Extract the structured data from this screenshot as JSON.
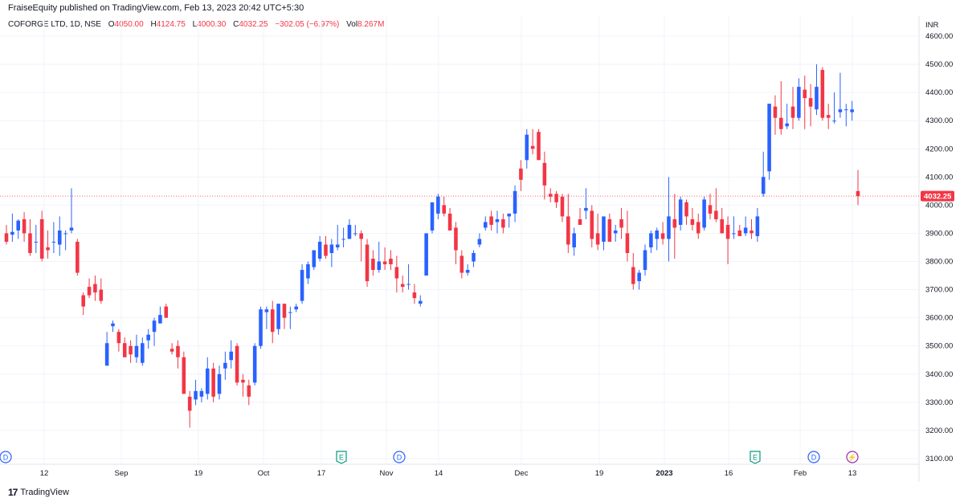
{
  "header": {
    "published_text": "FraiseEquity published on TradingView.com, Feb 13, 2023 20:42 UTC+5:30"
  },
  "legend": {
    "symbol": "COFORGE LTD, 1D, NSE",
    "open_label": "O",
    "open": "4050.00",
    "high_label": "H",
    "high": "4124.75",
    "low_label": "L",
    "low": "4000.30",
    "close_label": "C",
    "close": "4032.25",
    "change": "−302.05 (−6.97%)",
    "vol_label": "Vol",
    "vol": "8.267M"
  },
  "axis": {
    "currency": "INR",
    "last_price_label": "4032.25"
  },
  "footer": {
    "brand": "TradingView"
  },
  "colors": {
    "up": "#2962ff",
    "down": "#f23645",
    "grid": "#f0f3fa",
    "marker_green": "#089981",
    "marker_blue": "#2962ff",
    "marker_purple": "#9c27b0"
  },
  "chart_data": {
    "type": "candlestick",
    "ylim": [
      3100,
      4600
    ],
    "y_ticks": [
      3100,
      3200,
      3300,
      3400,
      3500,
      3600,
      3700,
      3800,
      3900,
      4000,
      4100,
      4200,
      4300,
      4400,
      4500,
      4600
    ],
    "x_ticks": [
      "12",
      "Sep",
      "19",
      "Oct",
      "17",
      "Nov",
      "14",
      "Dec",
      "19",
      "2023",
      "16",
      "Feb",
      "13"
    ],
    "last_price": 4032.25,
    "event_markers": [
      {
        "label": "D",
        "kind": "dividend"
      },
      {
        "label": "E",
        "kind": "earnings"
      },
      {
        "label": "D",
        "kind": "dividend"
      },
      {
        "label": "E",
        "kind": "earnings"
      },
      {
        "label": "D",
        "kind": "dividend"
      },
      {
        "label": "⚡",
        "kind": "split"
      }
    ],
    "candles": [
      {
        "o": 3900,
        "h": 3930,
        "l": 3860,
        "c": 3870
      },
      {
        "o": 3895,
        "h": 3970,
        "l": 3870,
        "c": 3905
      },
      {
        "o": 3910,
        "h": 3950,
        "l": 3880,
        "c": 3945
      },
      {
        "o": 3950,
        "h": 3975,
        "l": 3870,
        "c": 3900
      },
      {
        "o": 3900,
        "h": 3950,
        "l": 3820,
        "c": 3830
      },
      {
        "o": 3870,
        "h": 3930,
        "l": 3830,
        "c": 3870
      },
      {
        "o": 3950,
        "h": 3980,
        "l": 3800,
        "c": 3810
      },
      {
        "o": 3850,
        "h": 3910,
        "l": 3810,
        "c": 3840
      },
      {
        "o": 3870,
        "h": 3940,
        "l": 3830,
        "c": 3870
      },
      {
        "o": 3860,
        "h": 3960,
        "l": 3820,
        "c": 3910
      },
      {
        "o": 3900,
        "h": 3910,
        "l": 3840,
        "c": 3900
      },
      {
        "o": 3910,
        "h": 4060,
        "l": 3900,
        "c": 3920
      },
      {
        "o": 3870,
        "h": 3880,
        "l": 3750,
        "c": 3760
      },
      {
        "o": 3680,
        "h": 3690,
        "l": 3610,
        "c": 3640
      },
      {
        "o": 3710,
        "h": 3740,
        "l": 3670,
        "c": 3680
      },
      {
        "o": 3720,
        "h": 3750,
        "l": 3660,
        "c": 3690
      },
      {
        "o": 3700,
        "h": 3740,
        "l": 3650,
        "c": 3660
      },
      {
        "o": 3430,
        "h": 3550,
        "l": 3430,
        "c": 3510
      },
      {
        "o": 3570,
        "h": 3590,
        "l": 3550,
        "c": 3580
      },
      {
        "o": 3550,
        "h": 3560,
        "l": 3480,
        "c": 3510
      },
      {
        "o": 3510,
        "h": 3530,
        "l": 3460,
        "c": 3460
      },
      {
        "o": 3500,
        "h": 3520,
        "l": 3440,
        "c": 3470
      },
      {
        "o": 3460,
        "h": 3540,
        "l": 3440,
        "c": 3500
      },
      {
        "o": 3440,
        "h": 3530,
        "l": 3430,
        "c": 3510
      },
      {
        "o": 3520,
        "h": 3560,
        "l": 3490,
        "c": 3540
      },
      {
        "o": 3550,
        "h": 3600,
        "l": 3500,
        "c": 3590
      },
      {
        "o": 3580,
        "h": 3640,
        "l": 3580,
        "c": 3610
      },
      {
        "o": 3640,
        "h": 3650,
        "l": 3600,
        "c": 3600
      },
      {
        "o": 3490,
        "h": 3510,
        "l": 3470,
        "c": 3480
      },
      {
        "o": 3500,
        "h": 3520,
        "l": 3420,
        "c": 3460
      },
      {
        "o": 3460,
        "h": 3480,
        "l": 3330,
        "c": 3330
      },
      {
        "o": 3320,
        "h": 3340,
        "l": 3210,
        "c": 3270
      },
      {
        "o": 3310,
        "h": 3380,
        "l": 3290,
        "c": 3340
      },
      {
        "o": 3320,
        "h": 3350,
        "l": 3300,
        "c": 3340
      },
      {
        "o": 3330,
        "h": 3460,
        "l": 3310,
        "c": 3420
      },
      {
        "o": 3420,
        "h": 3440,
        "l": 3300,
        "c": 3320
      },
      {
        "o": 3330,
        "h": 3430,
        "l": 3310,
        "c": 3400
      },
      {
        "o": 3420,
        "h": 3480,
        "l": 3380,
        "c": 3440
      },
      {
        "o": 3450,
        "h": 3520,
        "l": 3420,
        "c": 3480
      },
      {
        "o": 3500,
        "h": 3510,
        "l": 3360,
        "c": 3370
      },
      {
        "o": 3380,
        "h": 3400,
        "l": 3320,
        "c": 3370
      },
      {
        "o": 3360,
        "h": 3380,
        "l": 3290,
        "c": 3320
      },
      {
        "o": 3370,
        "h": 3510,
        "l": 3360,
        "c": 3500
      },
      {
        "o": 3500,
        "h": 3640,
        "l": 3490,
        "c": 3630
      },
      {
        "o": 3620,
        "h": 3640,
        "l": 3560,
        "c": 3630
      },
      {
        "o": 3630,
        "h": 3660,
        "l": 3510,
        "c": 3550
      },
      {
        "o": 3560,
        "h": 3650,
        "l": 3540,
        "c": 3650
      },
      {
        "o": 3650,
        "h": 3650,
        "l": 3560,
        "c": 3600
      },
      {
        "o": 3620,
        "h": 3640,
        "l": 3560,
        "c": 3620
      },
      {
        "o": 3630,
        "h": 3650,
        "l": 3620,
        "c": 3640
      },
      {
        "o": 3660,
        "h": 3790,
        "l": 3650,
        "c": 3770
      },
      {
        "o": 3740,
        "h": 3800,
        "l": 3720,
        "c": 3790
      },
      {
        "o": 3780,
        "h": 3840,
        "l": 3770,
        "c": 3840
      },
      {
        "o": 3810,
        "h": 3890,
        "l": 3800,
        "c": 3870
      },
      {
        "o": 3860,
        "h": 3890,
        "l": 3810,
        "c": 3820
      },
      {
        "o": 3830,
        "h": 3880,
        "l": 3780,
        "c": 3860
      },
      {
        "o": 3850,
        "h": 3930,
        "l": 3840,
        "c": 3860
      },
      {
        "o": 3880,
        "h": 3920,
        "l": 3850,
        "c": 3880
      },
      {
        "o": 3880,
        "h": 3950,
        "l": 3880,
        "c": 3930
      },
      {
        "o": 3900,
        "h": 3930,
        "l": 3890,
        "c": 3900
      },
      {
        "o": 3900,
        "h": 3910,
        "l": 3800,
        "c": 3880
      },
      {
        "o": 3860,
        "h": 3880,
        "l": 3710,
        "c": 3730
      },
      {
        "o": 3810,
        "h": 3840,
        "l": 3750,
        "c": 3770
      },
      {
        "o": 3770,
        "h": 3870,
        "l": 3760,
        "c": 3800
      },
      {
        "o": 3800,
        "h": 3850,
        "l": 3770,
        "c": 3790
      },
      {
        "o": 3810,
        "h": 3840,
        "l": 3770,
        "c": 3790
      },
      {
        "o": 3780,
        "h": 3820,
        "l": 3690,
        "c": 3740
      },
      {
        "o": 3720,
        "h": 3750,
        "l": 3690,
        "c": 3710
      },
      {
        "o": 3720,
        "h": 3790,
        "l": 3700,
        "c": 3720
      },
      {
        "o": 3690,
        "h": 3720,
        "l": 3650,
        "c": 3670
      },
      {
        "o": 3650,
        "h": 3680,
        "l": 3640,
        "c": 3660
      },
      {
        "o": 3750,
        "h": 3900,
        "l": 3750,
        "c": 3900
      },
      {
        "o": 3910,
        "h": 4010,
        "l": 3900,
        "c": 4010
      },
      {
        "o": 3970,
        "h": 4040,
        "l": 3950,
        "c": 4030
      },
      {
        "o": 4000,
        "h": 4030,
        "l": 3960,
        "c": 3970
      },
      {
        "o": 3970,
        "h": 3990,
        "l": 3910,
        "c": 3910
      },
      {
        "o": 3920,
        "h": 3940,
        "l": 3790,
        "c": 3840
      },
      {
        "o": 3820,
        "h": 3840,
        "l": 3740,
        "c": 3760
      },
      {
        "o": 3760,
        "h": 3790,
        "l": 3750,
        "c": 3770
      },
      {
        "o": 3800,
        "h": 3840,
        "l": 3780,
        "c": 3830
      },
      {
        "o": 3860,
        "h": 3900,
        "l": 3850,
        "c": 3880
      },
      {
        "o": 3920,
        "h": 3960,
        "l": 3910,
        "c": 3940
      },
      {
        "o": 3960,
        "h": 3980,
        "l": 3910,
        "c": 3930
      },
      {
        "o": 3940,
        "h": 3980,
        "l": 3900,
        "c": 3950
      },
      {
        "o": 3950,
        "h": 3970,
        "l": 3900,
        "c": 3920
      },
      {
        "o": 3960,
        "h": 3970,
        "l": 3920,
        "c": 3970
      },
      {
        "o": 3970,
        "h": 4070,
        "l": 3940,
        "c": 4050
      },
      {
        "o": 4130,
        "h": 4160,
        "l": 4050,
        "c": 4090
      },
      {
        "o": 4160,
        "h": 4270,
        "l": 4130,
        "c": 4250
      },
      {
        "o": 4210,
        "h": 4270,
        "l": 4180,
        "c": 4200
      },
      {
        "o": 4260,
        "h": 4270,
        "l": 4160,
        "c": 4160
      },
      {
        "o": 4150,
        "h": 4190,
        "l": 4020,
        "c": 4070
      },
      {
        "o": 4040,
        "h": 4060,
        "l": 4010,
        "c": 4030
      },
      {
        "o": 4040,
        "h": 4050,
        "l": 3990,
        "c": 4010
      },
      {
        "o": 4030,
        "h": 4040,
        "l": 3940,
        "c": 3960
      },
      {
        "o": 3960,
        "h": 4040,
        "l": 3830,
        "c": 3860
      },
      {
        "o": 3850,
        "h": 3920,
        "l": 3820,
        "c": 3900
      },
      {
        "o": 3950,
        "h": 3990,
        "l": 3930,
        "c": 3930
      },
      {
        "o": 3980,
        "h": 4060,
        "l": 3950,
        "c": 3990
      },
      {
        "o": 3980,
        "h": 4000,
        "l": 3850,
        "c": 3880
      },
      {
        "o": 3900,
        "h": 3970,
        "l": 3840,
        "c": 3860
      },
      {
        "o": 3870,
        "h": 3950,
        "l": 3840,
        "c": 3960
      },
      {
        "o": 3950,
        "h": 3970,
        "l": 3870,
        "c": 3870
      },
      {
        "o": 3900,
        "h": 3930,
        "l": 3870,
        "c": 3910
      },
      {
        "o": 3950,
        "h": 3990,
        "l": 3880,
        "c": 3920
      },
      {
        "o": 3900,
        "h": 3980,
        "l": 3800,
        "c": 3830
      },
      {
        "o": 3780,
        "h": 3830,
        "l": 3700,
        "c": 3720
      },
      {
        "o": 3730,
        "h": 3770,
        "l": 3700,
        "c": 3760
      },
      {
        "o": 3770,
        "h": 3860,
        "l": 3750,
        "c": 3840
      },
      {
        "o": 3850,
        "h": 3910,
        "l": 3830,
        "c": 3900
      },
      {
        "o": 3880,
        "h": 3920,
        "l": 3840,
        "c": 3910
      },
      {
        "o": 3900,
        "h": 3940,
        "l": 3860,
        "c": 3880
      },
      {
        "o": 3880,
        "h": 4100,
        "l": 3800,
        "c": 3960
      },
      {
        "o": 3950,
        "h": 4040,
        "l": 3810,
        "c": 3920
      },
      {
        "o": 3930,
        "h": 4030,
        "l": 3910,
        "c": 4020
      },
      {
        "o": 4010,
        "h": 4020,
        "l": 3930,
        "c": 3960
      },
      {
        "o": 3950,
        "h": 3990,
        "l": 3910,
        "c": 3930
      },
      {
        "o": 3940,
        "h": 3970,
        "l": 3880,
        "c": 3900
      },
      {
        "o": 3920,
        "h": 4030,
        "l": 3910,
        "c": 4020
      },
      {
        "o": 4000,
        "h": 4040,
        "l": 3950,
        "c": 3970
      },
      {
        "o": 3980,
        "h": 4060,
        "l": 3940,
        "c": 3950
      },
      {
        "o": 3950,
        "h": 3990,
        "l": 3900,
        "c": 3900
      },
      {
        "o": 3930,
        "h": 3960,
        "l": 3790,
        "c": 3880
      },
      {
        "o": 3900,
        "h": 3960,
        "l": 3880,
        "c": 3900
      },
      {
        "o": 3910,
        "h": 3930,
        "l": 3890,
        "c": 3890
      },
      {
        "o": 3900,
        "h": 3960,
        "l": 3890,
        "c": 3920
      },
      {
        "o": 3910,
        "h": 3950,
        "l": 3880,
        "c": 3900
      },
      {
        "o": 3890,
        "h": 3990,
        "l": 3870,
        "c": 3960
      },
      {
        "o": 4040,
        "h": 4190,
        "l": 4030,
        "c": 4100
      },
      {
        "o": 4120,
        "h": 4360,
        "l": 4090,
        "c": 4360
      },
      {
        "o": 4350,
        "h": 4390,
        "l": 4250,
        "c": 4310
      },
      {
        "o": 4310,
        "h": 4440,
        "l": 4250,
        "c": 4270
      },
      {
        "o": 4280,
        "h": 4360,
        "l": 4270,
        "c": 4290
      },
      {
        "o": 4350,
        "h": 4420,
        "l": 4270,
        "c": 4310
      },
      {
        "o": 4310,
        "h": 4450,
        "l": 4300,
        "c": 4420
      },
      {
        "o": 4410,
        "h": 4460,
        "l": 4270,
        "c": 4380
      },
      {
        "o": 4380,
        "h": 4430,
        "l": 4280,
        "c": 4350
      },
      {
        "o": 4340,
        "h": 4500,
        "l": 4320,
        "c": 4420
      },
      {
        "o": 4480,
        "h": 4490,
        "l": 4300,
        "c": 4310
      },
      {
        "o": 4320,
        "h": 4360,
        "l": 4270,
        "c": 4310
      },
      {
        "o": 4300,
        "h": 4400,
        "l": 4290,
        "c": 4300
      },
      {
        "o": 4330,
        "h": 4470,
        "l": 4310,
        "c": 4340
      },
      {
        "o": 4340,
        "h": 4360,
        "l": 4280,
        "c": 4340
      },
      {
        "o": 4330,
        "h": 4370,
        "l": 4300,
        "c": 4340
      },
      {
        "o": 4050,
        "h": 4125,
        "l": 4000,
        "c": 4032
      }
    ]
  }
}
